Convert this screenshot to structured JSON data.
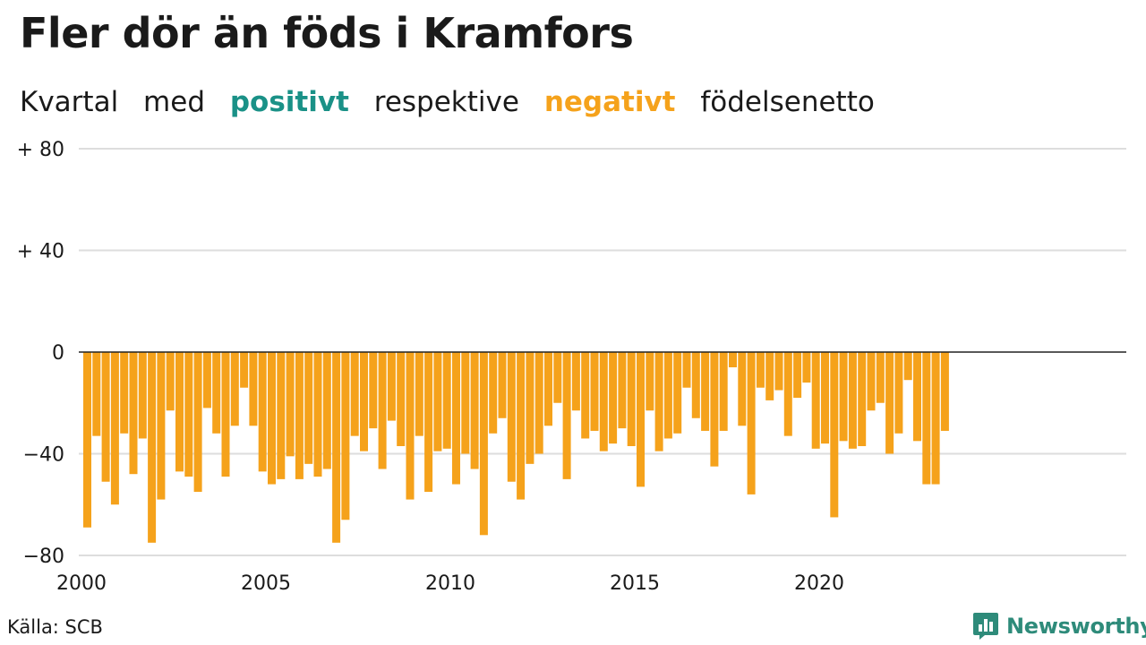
{
  "title": "Fler dör än föds i Kramfors",
  "subtitle": {
    "part1": "Kvartal",
    "part2": "med",
    "positive": "positivt",
    "part3": "respektive",
    "negative": "negativt",
    "part4": "födelsenetto"
  },
  "colors": {
    "positive": "#1a9187",
    "negative": "#f5a21b",
    "grid": "#dddddd",
    "zero_line": "#222222",
    "brand": "#2e8b7a"
  },
  "chart_data": {
    "type": "bar",
    "title": "Fler dör än föds i Kramfors",
    "ylim": [
      -80,
      80
    ],
    "y_ticks": [
      {
        "value": 80,
        "label": "+ 80"
      },
      {
        "value": 40,
        "label": "+ 40"
      },
      {
        "value": 0,
        "label": "0"
      },
      {
        "value": -40,
        "label": "−40"
      },
      {
        "value": -80,
        "label": "−80"
      }
    ],
    "x_ticks": [
      {
        "year": 2000,
        "label": "2000"
      },
      {
        "year": 2005,
        "label": "2005"
      },
      {
        "year": 2010,
        "label": "2010"
      },
      {
        "year": 2015,
        "label": "2015"
      },
      {
        "year": 2020,
        "label": "2020"
      }
    ],
    "start_year": 2000,
    "quarters_per_year": 4,
    "grid": true,
    "values": [
      -69,
      -33,
      -51,
      -60,
      -32,
      -48,
      -34,
      -75,
      -58,
      -23,
      -47,
      -49,
      -55,
      -22,
      -32,
      -49,
      -29,
      -14,
      -29,
      -47,
      -52,
      -50,
      -41,
      -50,
      -44,
      -49,
      -46,
      -75,
      -66,
      -33,
      -39,
      -30,
      -46,
      -27,
      -37,
      -58,
      -33,
      -55,
      -39,
      -38,
      -52,
      -40,
      -46,
      -72,
      -32,
      -26,
      -51,
      -58,
      -44,
      -40,
      -29,
      -20,
      -50,
      -23,
      -34,
      -31,
      -39,
      -36,
      -30,
      -37,
      -53,
      -23,
      -39,
      -34,
      -32,
      -14,
      -26,
      -31,
      -45,
      -31,
      -6,
      -29,
      -56,
      -14,
      -19,
      -15,
      -33,
      -18,
      -12,
      -38,
      -36,
      -65,
      -35,
      -38,
      -37,
      -23,
      -20,
      -40,
      -32,
      -11,
      -35,
      -52,
      -52,
      -31
    ]
  },
  "source": "Källa: SCB",
  "brand": {
    "name": "Newsworthy",
    "logo_icon": "bar-chart-bubble-icon"
  }
}
